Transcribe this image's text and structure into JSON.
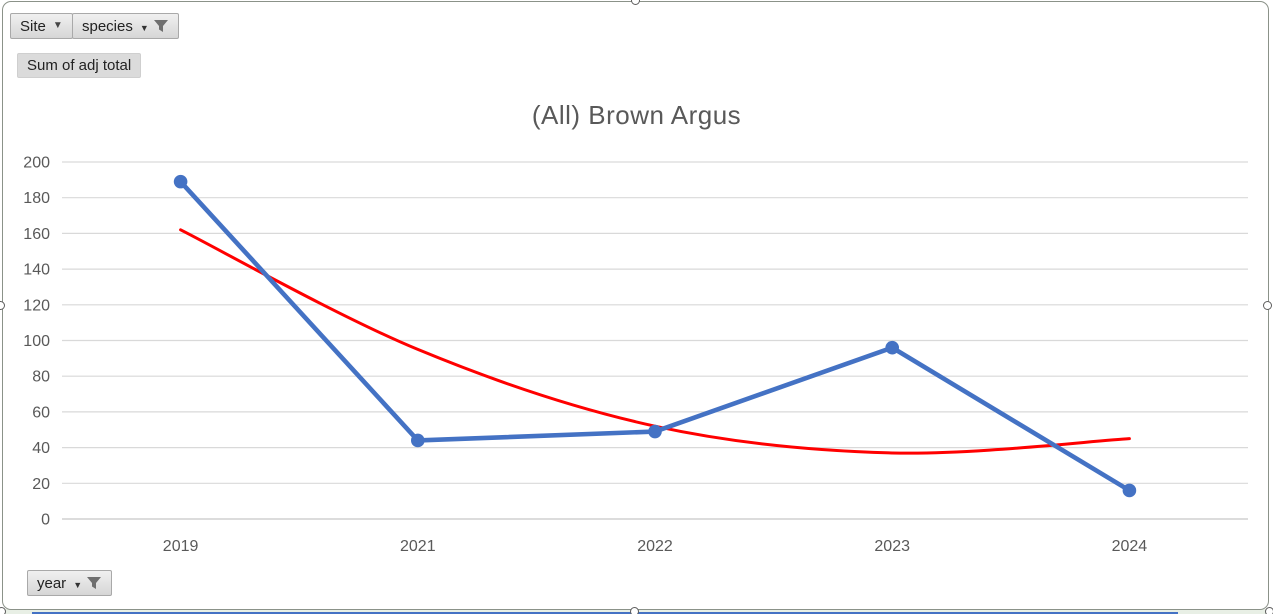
{
  "chart": {
    "title": "(All) Brown Argus"
  },
  "pivot_controls": {
    "site": {
      "label": "Site"
    },
    "species": {
      "label": "species"
    },
    "value": {
      "label": "Sum of adj total"
    },
    "year": {
      "label": "year"
    },
    "dropdown_arrow_glyph": "▼",
    "mini_arrow_glyph": "▼"
  },
  "colors": {
    "series_blue": "#4472C4",
    "trendline_red": "#FF0000",
    "gridline": "#D9D9D9",
    "axis_line": "#C6C6C6",
    "axis_text": "#595959",
    "title_text": "#595959"
  },
  "chart_data": {
    "type": "line",
    "title": "(All) Brown Argus",
    "categories": [
      "2019",
      "2021",
      "2022",
      "2023",
      "2024"
    ],
    "series": [
      {
        "name": "Sum of adj total",
        "values": [
          189,
          44,
          49,
          96,
          16
        ],
        "color": "#4472C4",
        "markers": true
      }
    ],
    "trendline": {
      "type": "polynomial",
      "order": 2,
      "values": [
        162,
        95,
        52,
        37,
        45
      ],
      "color": "#FF0000"
    },
    "xlabel": "",
    "ylabel": "",
    "ylim": [
      0,
      200
    ],
    "ytick_step": 20,
    "grid": true,
    "legend": "none"
  }
}
